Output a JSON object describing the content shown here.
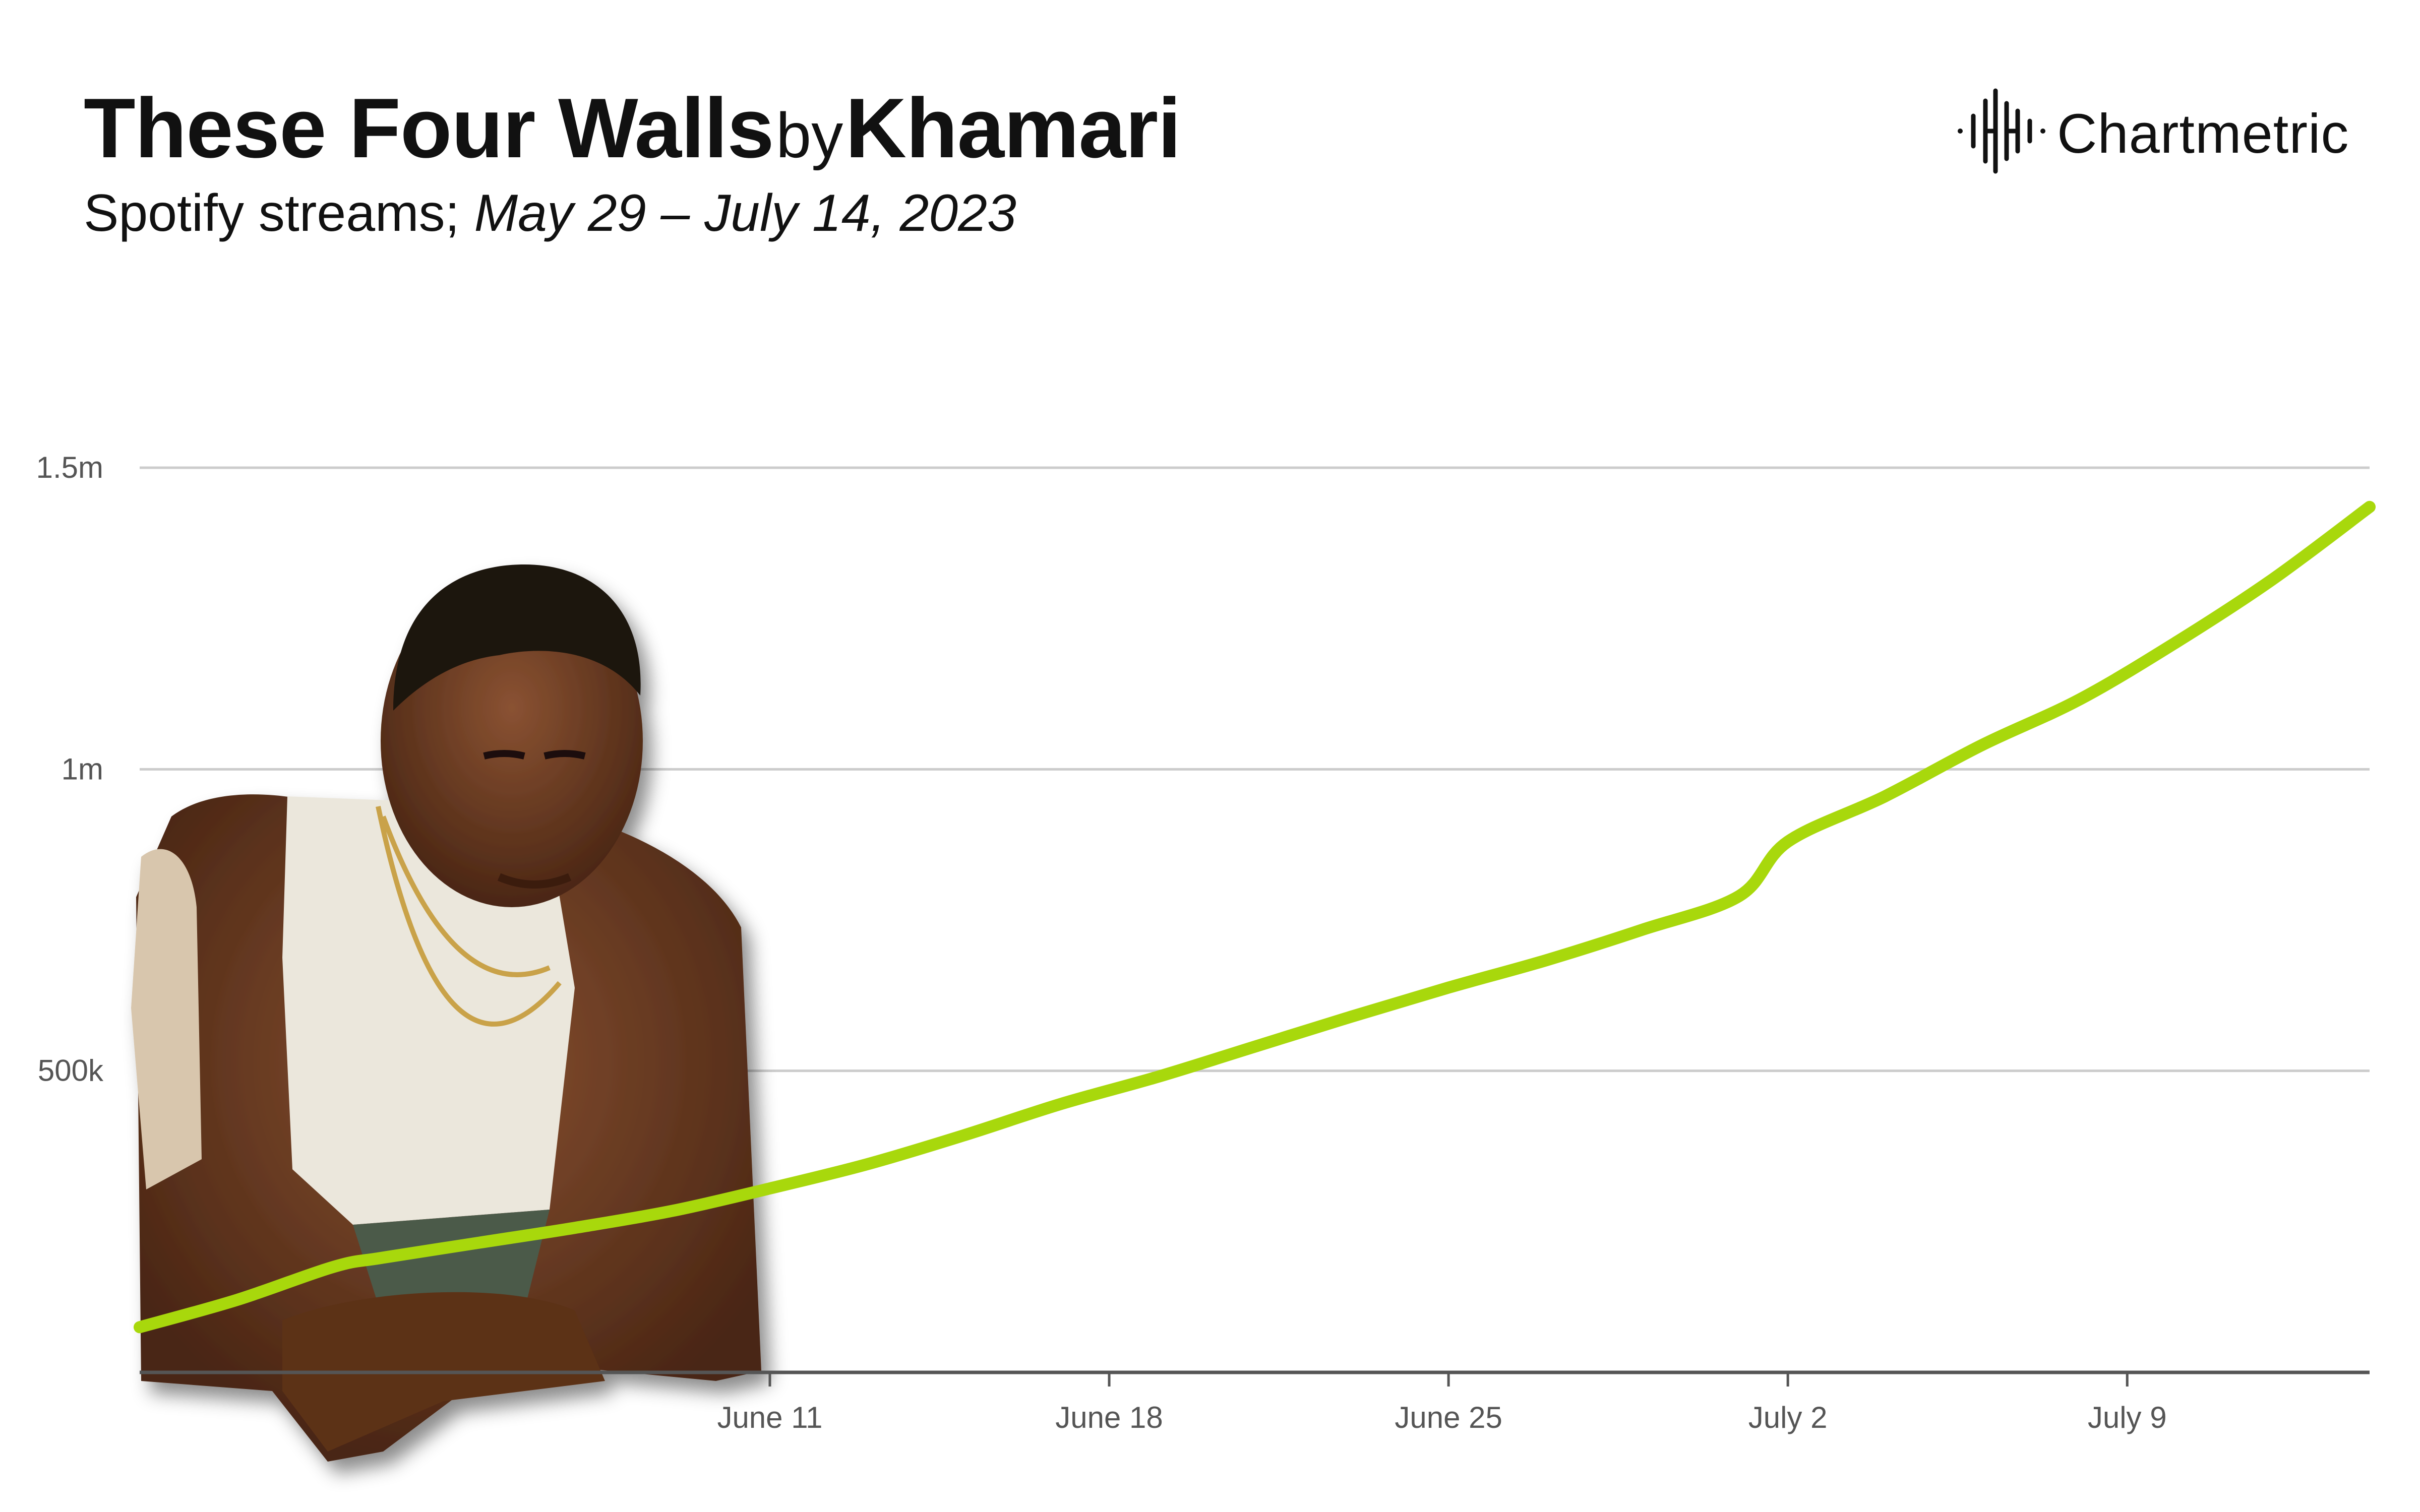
{
  "header": {
    "song": "These Four Walls",
    "by": "by",
    "artist": "Khamari",
    "subtitle_prefix": "Spotify streams;",
    "subtitle_range": "May 29 – July 14, 2023"
  },
  "logo": {
    "text": "Chartmetric",
    "icon": "sound-wave-icon"
  },
  "photo": {
    "icon": "artist-photo-icon"
  },
  "chart_data": {
    "type": "line",
    "title": "",
    "xlabel": "",
    "ylabel": "",
    "xlim": [
      "2023-05-29",
      "2023-07-14"
    ],
    "ylim": [
      0,
      1500000
    ],
    "grid": true,
    "legend": "none",
    "x_ticks": [
      {
        "date": "2023-06-11",
        "label": "June 11"
      },
      {
        "date": "2023-06-18",
        "label": "June 18"
      },
      {
        "date": "2023-06-25",
        "label": "June 25"
      },
      {
        "date": "2023-07-02",
        "label": "July 2"
      },
      {
        "date": "2023-07-09",
        "label": "July 9"
      }
    ],
    "y_ticks": [
      {
        "value": 500000,
        "label": "500k"
      },
      {
        "value": 1000000,
        "label": "1m"
      },
      {
        "value": 1500000,
        "label": "1.5m"
      }
    ],
    "series": [
      {
        "color": "#a8d80c",
        "x": [
          "2023-05-29",
          "2023-05-31",
          "2023-06-02",
          "2023-06-03",
          "2023-06-05",
          "2023-06-07",
          "2023-06-09",
          "2023-06-11",
          "2023-06-13",
          "2023-06-15",
          "2023-06-17",
          "2023-06-19",
          "2023-06-21",
          "2023-06-23",
          "2023-06-25",
          "2023-06-27",
          "2023-06-29",
          "2023-07-01",
          "2023-07-02",
          "2023-07-04",
          "2023-07-06",
          "2023-07-08",
          "2023-07-10",
          "2023-07-12",
          "2023-07-14"
        ],
        "y": [
          75000,
          120000,
          175000,
          190000,
          215000,
          240000,
          268000,
          305000,
          345000,
          393000,
          445000,
          490000,
          540000,
          590000,
          638000,
          683000,
          734000,
          790000,
          880000,
          955000,
          1040000,
          1115000,
          1210000,
          1315000,
          1435000
        ]
      }
    ]
  },
  "colors": {
    "line": "#a8d80c",
    "grid": "#cccccc",
    "axis": "#555555",
    "text": "#111111"
  }
}
